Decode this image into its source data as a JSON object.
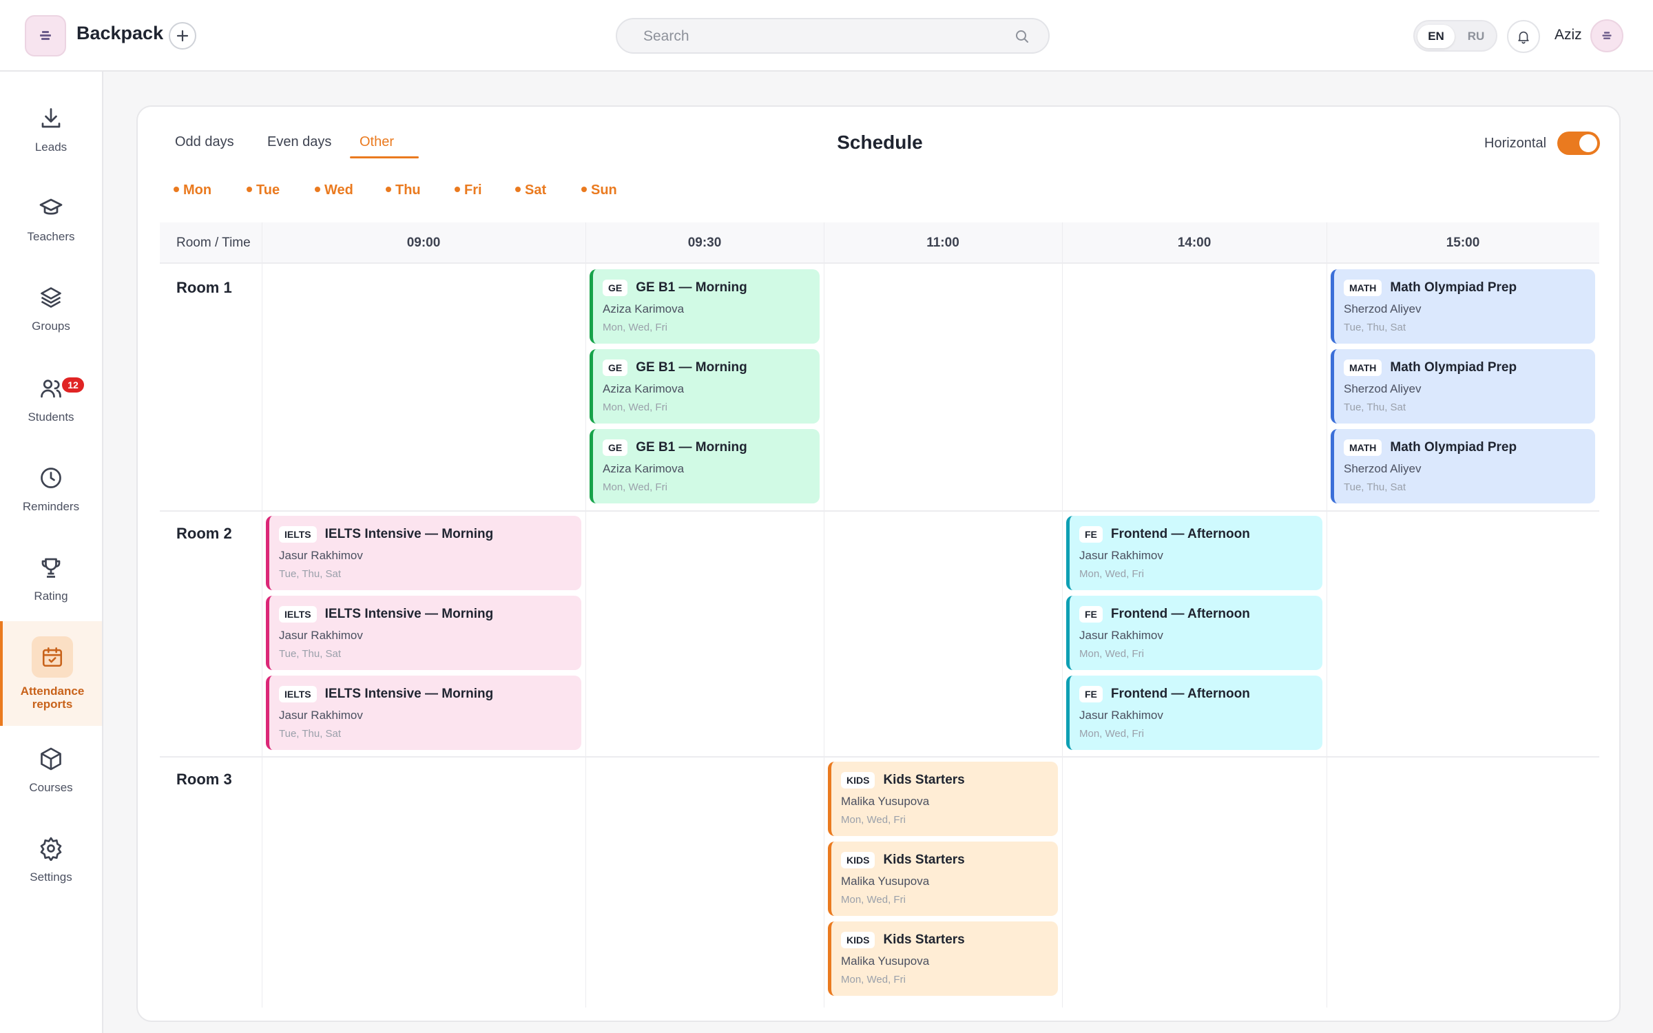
{
  "app": {
    "brand": "Backpack",
    "user": "Aziz"
  },
  "search": {
    "placeholder": "Search",
    "value": ""
  },
  "lang": {
    "options": [
      "EN",
      "RU"
    ],
    "selected": "EN"
  },
  "sidebar": {
    "items": [
      {
        "label": "Leads",
        "icon": "download-icon"
      },
      {
        "label": "Teachers",
        "icon": "graduation-cap-icon"
      },
      {
        "label": "Groups",
        "icon": "layers-icon"
      },
      {
        "label": "Students",
        "icon": "users-icon",
        "badge": "12"
      },
      {
        "label": "Reminders",
        "icon": "clock-icon"
      },
      {
        "label": "Rating",
        "icon": "trophy-icon"
      },
      {
        "label": "Attendance reports",
        "icon": "calendar-check-icon",
        "active": true
      },
      {
        "label": "Courses",
        "icon": "box-icon"
      },
      {
        "label": "Settings",
        "icon": "gear-icon"
      }
    ]
  },
  "schedule": {
    "title": "Schedule",
    "tabs": [
      "Odd days",
      "Even days",
      "Other"
    ],
    "active_tab": "Other",
    "horizontal_label": "Horizontal",
    "horizontal_on": true,
    "days": [
      "Mon",
      "Tue",
      "Wed",
      "Thu",
      "Fri",
      "Sat",
      "Sun"
    ],
    "header_first": "Room / Time",
    "times": [
      "09:00",
      "09:30",
      "11:00",
      "14:00",
      "15:00"
    ],
    "rooms": [
      "Room 1",
      "Room 2",
      "Room 3"
    ],
    "classes": [
      {
        "room": 0,
        "time": 1,
        "tag": "GE",
        "name": "GE B1 — Morning",
        "teacher": "Aziza Karimova",
        "days": "Mon, Wed, Fri",
        "color": "green"
      },
      {
        "room": 0,
        "time": 4,
        "tag": "MATH",
        "name": "Math Olympiad Prep",
        "teacher": "Sherzod Aliyev",
        "days": "Tue, Thu, Sat",
        "color": "blue"
      },
      {
        "room": 1,
        "time": 0,
        "tag": "IELTS",
        "name": "IELTS Intensive — Morning",
        "teacher": "Jasur Rakhimov",
        "days": "Tue, Thu, Sat",
        "color": "pink"
      },
      {
        "room": 1,
        "time": 3,
        "tag": "FE",
        "name": "Frontend — Afternoon",
        "teacher": "Jasur Rakhimov",
        "days": "Mon, Wed, Fri",
        "color": "cyan"
      },
      {
        "room": 2,
        "time": 2,
        "tag": "KIDS",
        "name": "Kids Starters",
        "teacher": "Malika Yusupova",
        "days": "Mon, Wed, Fri",
        "color": "orange"
      }
    ],
    "repeat_per_cell": 3
  },
  "colors": {
    "accent": "#ea7a1f",
    "badge": "#e02424"
  }
}
